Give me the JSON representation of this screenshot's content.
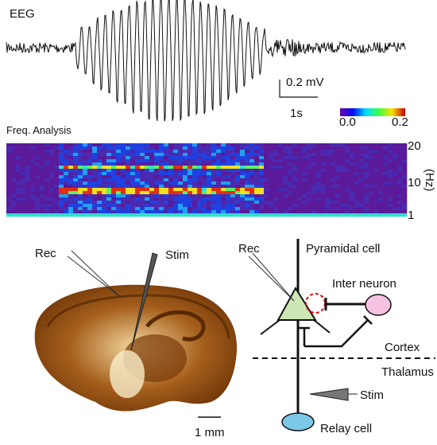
{
  "eeg": {
    "label": "EEG",
    "scale_voltage": "0.2 mV",
    "scale_time": "1s"
  },
  "spectrogram": {
    "title": "Freq. Analysis",
    "colorbar_labels": [
      "0.0",
      "0.2"
    ],
    "freq_ticks": [
      "20",
      "10",
      "1"
    ],
    "unit": "(Hz)"
  },
  "slice": {
    "rec_label": "Rec",
    "stim_label": "Stim",
    "scale_label": "1 mm"
  },
  "circuit": {
    "rec_label": "Rec",
    "pyramidal_label": "Pyramidal cell",
    "interneuron_label": "Inter neuron",
    "cortex_label": "Cortex",
    "thalamus_label": "Thalamus",
    "stim_label": "Stim",
    "relay_label": "Relay cell"
  }
}
